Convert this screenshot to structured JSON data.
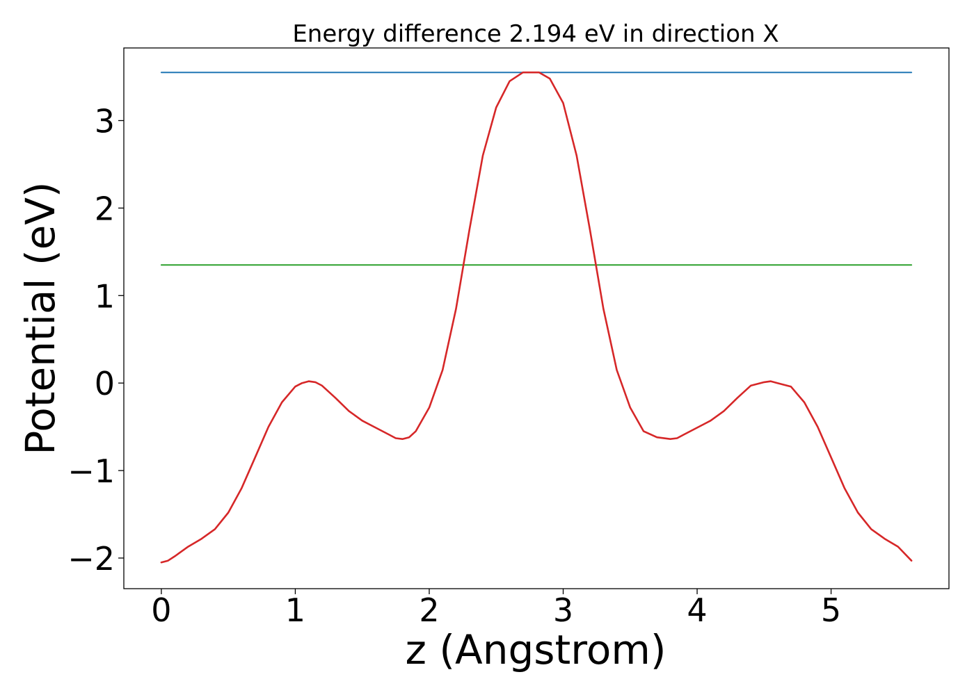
{
  "chart_data": {
    "type": "line",
    "title": "Energy difference 2.194 eV in direction X",
    "xlabel": "z (Angstrom)",
    "ylabel": "Potential (eV)",
    "xlim": [
      -0.28,
      5.88
    ],
    "ylim": [
      -2.35,
      3.83
    ],
    "xticks": [
      0,
      1,
      2,
      3,
      4,
      5
    ],
    "xtick_labels": [
      "0",
      "1",
      "2",
      "3",
      "4",
      "5"
    ],
    "yticks": [
      -2,
      -1,
      0,
      1,
      2,
      3
    ],
    "ytick_labels": [
      "−2",
      "−1",
      "0",
      "1",
      "2",
      "3"
    ],
    "grid": false,
    "series": [
      {
        "color": "#1f77b4",
        "x": [
          0,
          5.6
        ],
        "y": [
          3.55,
          3.55
        ]
      },
      {
        "color": "#2ca02c",
        "x": [
          0,
          5.6
        ],
        "y": [
          1.35,
          1.35
        ]
      },
      {
        "color": "#d62728",
        "x": [
          0,
          0.05,
          0.1,
          0.2,
          0.3,
          0.4,
          0.5,
          0.6,
          0.7,
          0.8,
          0.9,
          1.0,
          1.05,
          1.1,
          1.15,
          1.2,
          1.3,
          1.4,
          1.5,
          1.6,
          1.7,
          1.75,
          1.8,
          1.85,
          1.9,
          2.0,
          2.1,
          2.2,
          2.3,
          2.4,
          2.5,
          2.6,
          2.7,
          2.8,
          2.82,
          2.9,
          3.0,
          3.1,
          3.2,
          3.3,
          3.4,
          3.5,
          3.6,
          3.7,
          3.8,
          3.85,
          3.9,
          4.0,
          4.1,
          4.2,
          4.3,
          4.4,
          4.5,
          4.55,
          4.6,
          4.7,
          4.8,
          4.9,
          5.0,
          5.1,
          5.2,
          5.3,
          5.4,
          5.5,
          5.6
        ],
        "y": [
          -2.05,
          -2.03,
          -1.98,
          -1.87,
          -1.78,
          -1.67,
          -1.48,
          -1.2,
          -0.85,
          -0.5,
          -0.22,
          -0.04,
          0.0,
          0.02,
          0.01,
          -0.03,
          -0.17,
          -0.32,
          -0.43,
          -0.51,
          -0.59,
          -0.63,
          -0.64,
          -0.62,
          -0.55,
          -0.28,
          0.15,
          0.85,
          1.75,
          2.6,
          3.15,
          3.45,
          3.55,
          3.55,
          3.55,
          3.48,
          3.2,
          2.6,
          1.75,
          0.85,
          0.15,
          -0.28,
          -0.55,
          -0.62,
          -0.64,
          -0.63,
          -0.59,
          -0.51,
          -0.43,
          -0.32,
          -0.17,
          -0.03,
          0.01,
          0.02,
          0.0,
          -0.04,
          -0.22,
          -0.5,
          -0.85,
          -1.2,
          -1.48,
          -1.67,
          -1.78,
          -1.87,
          -2.03
        ]
      }
    ]
  }
}
